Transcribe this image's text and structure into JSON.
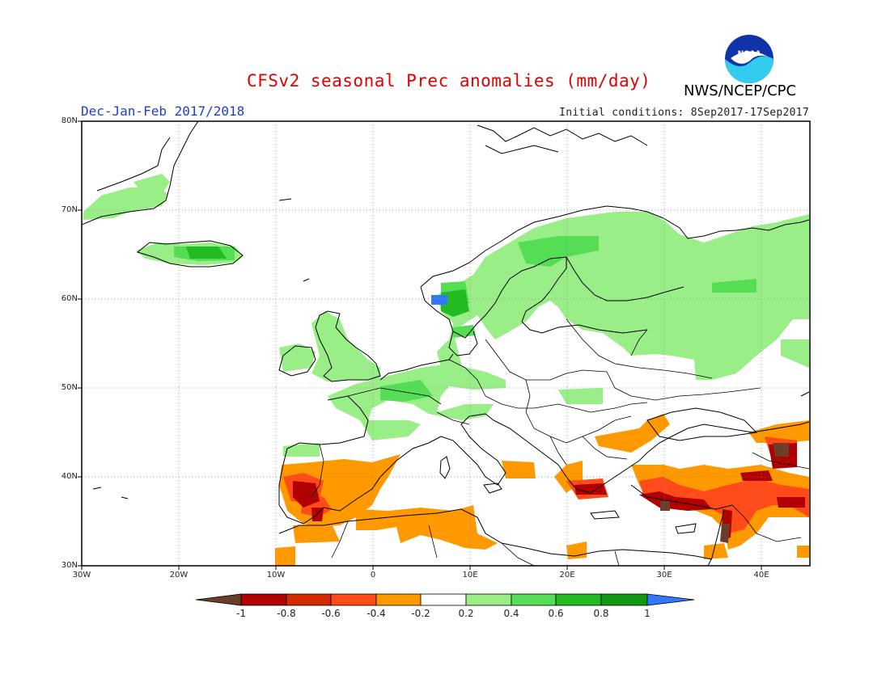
{
  "title": "CFSv2 seasonal Prec anomalies (mm/day)",
  "period": "Dec-Jan-Feb 2017/2018",
  "initial_conditions": "Initial conditions: 8Sep2017-17Sep2017",
  "agency": "NWS/NCEP/CPC",
  "logo_text": "NOAA",
  "latitude_labels": [
    "80N",
    "70N",
    "60N",
    "50N",
    "40N",
    "30N"
  ],
  "longitude_labels": [
    "30W",
    "20W",
    "10W",
    "0",
    "10E",
    "20E",
    "30E",
    "40E"
  ],
  "colorbar": {
    "labels": [
      "-1",
      "-0.8",
      "-0.6",
      "-0.4",
      "-0.2",
      "0.2",
      "0.4",
      "0.6",
      "0.8",
      "1"
    ],
    "colors": [
      "#6b3d2a",
      "#b00000",
      "#d42a00",
      "#ff4a1a",
      "#ff9900",
      "#ffffff",
      "#99ee88",
      "#55dd55",
      "#22bb22",
      "#119911",
      "#3377ff"
    ]
  }
}
